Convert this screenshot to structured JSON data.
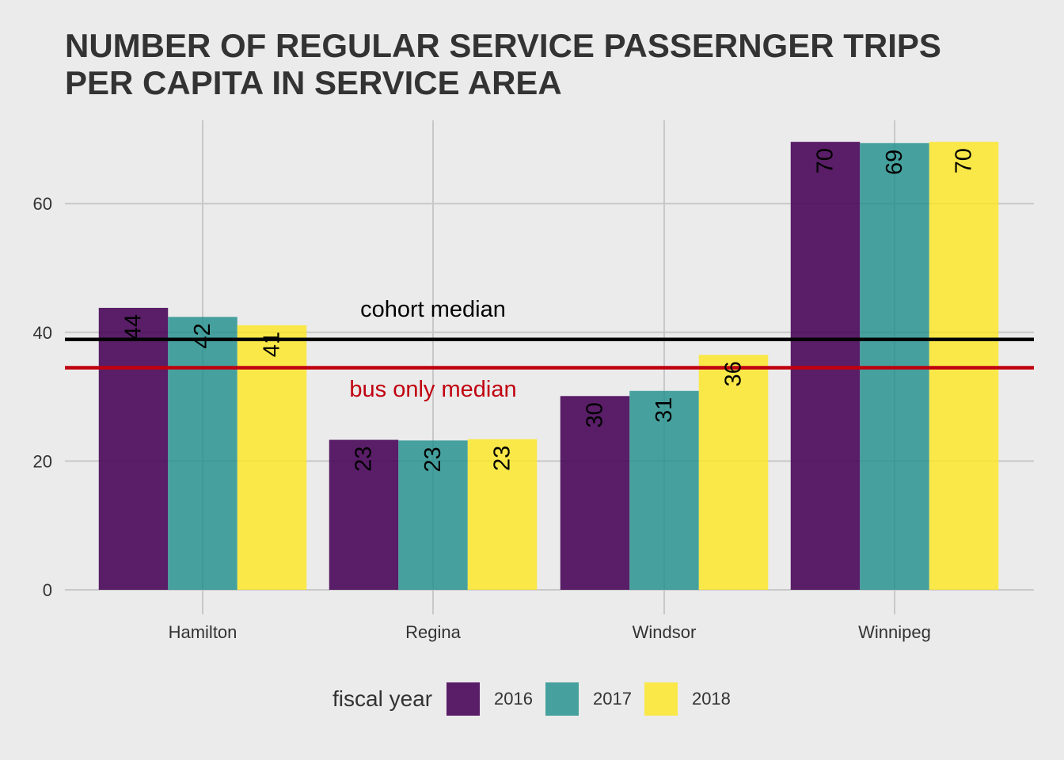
{
  "chart_data": {
    "type": "bar",
    "title_lines": [
      "NUMBER OF REGULAR SERVICE PASSERNGER TRIPS",
      "PER CAPITA IN SERVICE AREA"
    ],
    "xlabel": "",
    "ylabel": "",
    "categories": [
      "Hamilton",
      "Regina",
      "Windsor",
      "Winnipeg"
    ],
    "series": [
      {
        "name": "2016",
        "color": "#44015499",
        "values": [
          43.8,
          23.3,
          30.1,
          69.6
        ],
        "labels": [
          "44",
          "23",
          "30",
          "70"
        ]
      },
      {
        "name": "2017",
        "color": "#21908c",
        "values": [
          42.4,
          23.2,
          30.9,
          69.4
        ],
        "labels": [
          "42",
          "23",
          "31",
          "69"
        ]
      },
      {
        "name": "2018",
        "color": "#fde725",
        "values": [
          41.1,
          23.4,
          36.5,
          69.6
        ],
        "labels": [
          "41",
          "23",
          "36",
          "70"
        ]
      }
    ],
    "ylim": [
      0,
      70
    ],
    "yticks": [
      0,
      20,
      40,
      60
    ],
    "grid": true,
    "legend": {
      "title": "fiscal year",
      "position": "bottom"
    },
    "reference_lines": [
      {
        "name": "cohort median",
        "value": 38.9,
        "color": "#000000"
      },
      {
        "name": "bus only median",
        "value": 34.5,
        "color": "#c0000f"
      }
    ]
  }
}
